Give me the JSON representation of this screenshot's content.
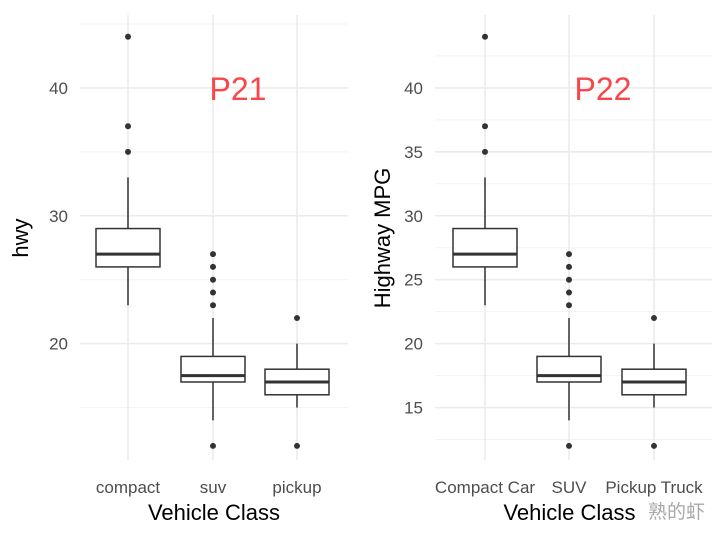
{
  "chart_data": [
    {
      "type": "box",
      "title": "P21",
      "xlabel": "Vehicle Class",
      "ylabel": "hwy",
      "categories": [
        "compact",
        "suv",
        "pickup"
      ],
      "yticks": [
        20,
        30,
        40
      ],
      "yminor": [
        15,
        25,
        35,
        45
      ],
      "ylim": [
        10.9,
        45.7
      ],
      "grid": true,
      "boxes": [
        {
          "q1": 26,
          "median": 27,
          "q3": 29,
          "whisker_low": 23,
          "whisker_high": 33,
          "outliers": [
            35,
            37,
            44
          ]
        },
        {
          "q1": 17,
          "median": 17.5,
          "q3": 19,
          "whisker_low": 14,
          "whisker_high": 22,
          "outliers": [
            12,
            23,
            24,
            25,
            26,
            27
          ]
        },
        {
          "q1": 16,
          "median": 17,
          "q3": 18,
          "whisker_low": 15,
          "whisker_high": 20,
          "outliers": [
            12,
            22
          ]
        }
      ]
    },
    {
      "type": "box",
      "title": "P22",
      "xlabel": "Vehicle Class",
      "ylabel": "Highway MPG",
      "categories": [
        "Compact Car",
        "SUV",
        "Pickup Truck"
      ],
      "yticks": [
        15,
        20,
        25,
        30,
        35,
        40
      ],
      "yminor": [
        12.5,
        17.5,
        22.5,
        27.5,
        32.5,
        37.5,
        42.5
      ],
      "ylim": [
        10.9,
        45.7
      ],
      "grid": true,
      "boxes": [
        {
          "q1": 26,
          "median": 27,
          "q3": 29,
          "whisker_low": 23,
          "whisker_high": 33,
          "outliers": [
            35,
            37,
            44
          ]
        },
        {
          "q1": 17,
          "median": 17.5,
          "q3": 19,
          "whisker_low": 14,
          "whisker_high": 22,
          "outliers": [
            12,
            23,
            24,
            25,
            26,
            27
          ]
        },
        {
          "q1": 16,
          "median": 17,
          "q3": 18,
          "whisker_low": 15,
          "whisker_high": 20,
          "outliers": [
            12,
            22
          ]
        }
      ]
    }
  ],
  "colors": {
    "title": "#f8464a",
    "box": "#333333",
    "grid": "#ebebeb"
  },
  "watermark": "熟的虾"
}
